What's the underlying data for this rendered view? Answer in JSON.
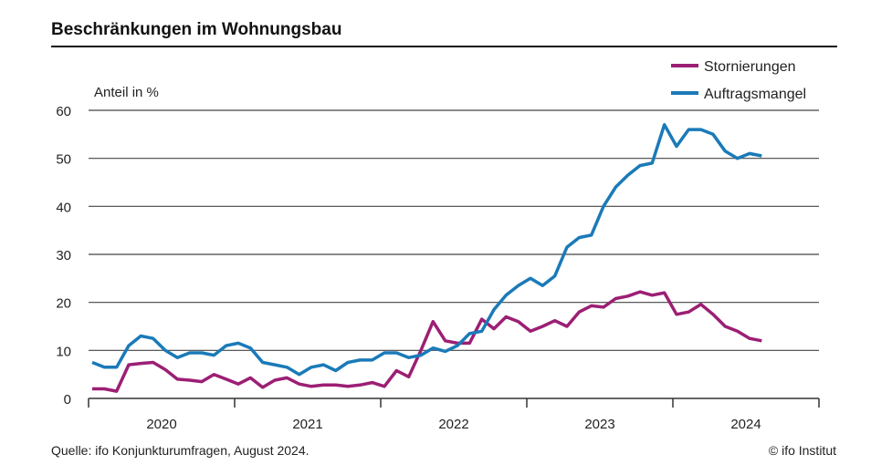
{
  "title": "Beschränkungen im Wohnungsbau",
  "source": "Quelle: ifo Konjunkturumfragen, August 2024.",
  "copyright": "© ifo Institut",
  "chart_data": {
    "type": "line",
    "title": "Beschränkungen im Wohnungsbau",
    "ylabel": "Anteil in %",
    "ylim": [
      0,
      60
    ],
    "yticks": [
      0,
      10,
      20,
      30,
      40,
      50,
      60
    ],
    "xtick_labels": [
      "2020",
      "2021",
      "2022",
      "2023",
      "2024"
    ],
    "x_start": "2020-01",
    "x_end": "2024-08",
    "frequency": "monthly",
    "grid": true,
    "legend_position": "top-right",
    "series": [
      {
        "name": "Stornierungen",
        "color": "#9c1f74",
        "values": [
          2,
          2,
          1.5,
          7,
          7.3,
          7.5,
          6,
          4,
          3.8,
          3.5,
          5,
          4,
          3,
          4.3,
          2.3,
          3.8,
          4.3,
          3,
          2.5,
          2.8,
          2.8,
          2.5,
          2.8,
          3.3,
          2.5,
          5.8,
          4.5,
          10,
          16,
          12,
          11.5,
          11.5,
          16.5,
          14.5,
          17,
          16,
          14,
          15,
          16.2,
          15,
          18,
          19.3,
          19,
          20.8,
          21.3,
          22.2,
          21.5,
          22,
          17.5,
          18,
          19.6,
          17.5,
          15,
          14,
          12.5,
          12
        ]
      },
      {
        "name": "Auftragsmangel",
        "color": "#1a7ab8",
        "values": [
          7.5,
          6.5,
          6.5,
          11,
          13,
          12.5,
          10,
          8.5,
          9.5,
          9.5,
          9,
          11,
          11.5,
          10.5,
          7.5,
          7,
          6.5,
          5,
          6.5,
          7,
          5.8,
          7.5,
          8,
          8,
          9.5,
          9.5,
          8.5,
          9,
          10.5,
          9.8,
          11,
          13.5,
          14,
          18.5,
          21.5,
          23.5,
          25,
          23.5,
          25.5,
          31.5,
          33.5,
          34,
          40,
          44,
          46.5,
          48.5,
          49,
          57,
          52.5,
          56,
          56,
          55,
          51.5,
          50,
          51,
          50.5
        ]
      }
    ]
  }
}
